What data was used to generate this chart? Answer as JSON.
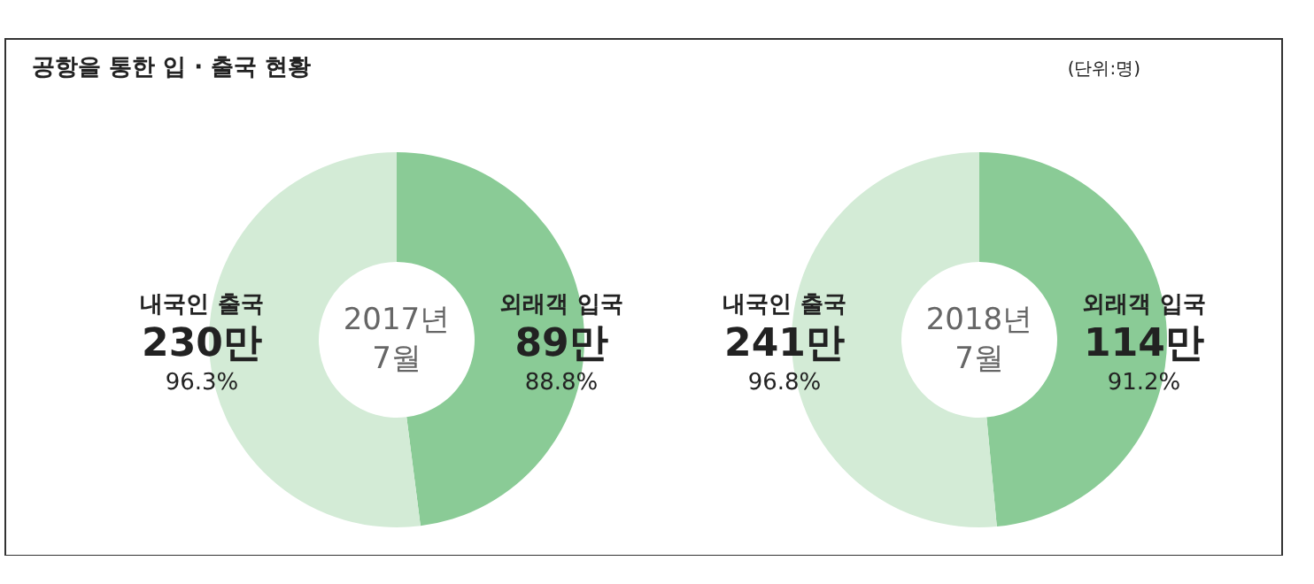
{
  "chart_data": [
    {
      "type": "donut",
      "title": "2017년\n7월",
      "categories": [
        "외래객 입국",
        "내국인 출국"
      ],
      "values": [
        88.8,
        96.3
      ],
      "colors": [
        "#8acb96",
        "#d3ebd6"
      ],
      "value_labels": [
        "89만\n88.8%",
        "230만\n96.3%"
      ],
      "annotations": [
        "공항을 통한 입 · 출국 현황"
      ]
    },
    {
      "type": "donut",
      "title": "2018년\n7월",
      "categories": [
        "외래객 입국",
        "내국인 출국"
      ],
      "values": [
        91.2,
        96.8
      ],
      "colors": [
        "#8acb96",
        "#d3ebd6"
      ],
      "value_labels": [
        "114만\n91.2%",
        "241만\n96.8%"
      ],
      "annotations": [
        "(단위:명)"
      ]
    }
  ]
}
